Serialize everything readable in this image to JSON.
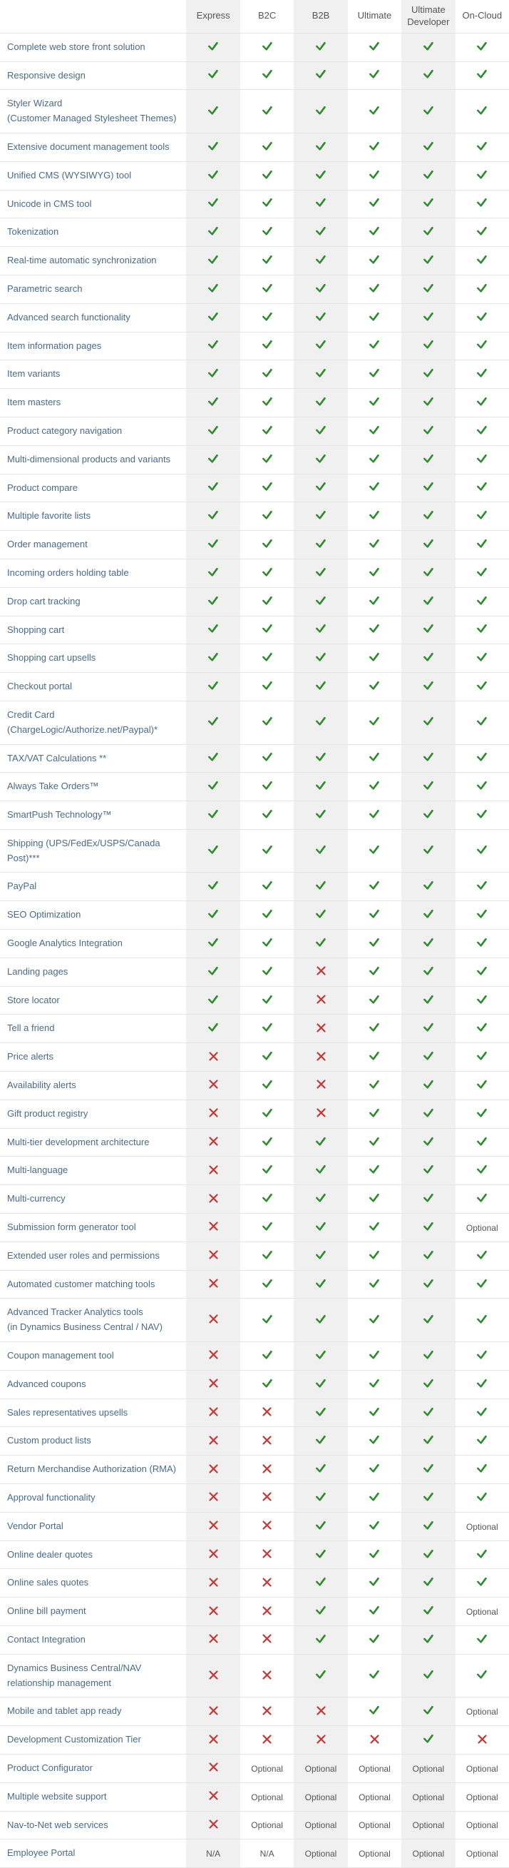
{
  "colors": {
    "check": "#2f8a2f",
    "cross": "#c23b3b",
    "shade": "#f0f0f0",
    "border": "#e5e5e5",
    "feature_text": "#4a6a8a",
    "text": "#555"
  },
  "columns": [
    "Express",
    "B2C",
    "B2B",
    "Ultimate",
    "Ultimate Developer",
    "On-Cloud"
  ],
  "shaded_cols": [
    0,
    2,
    4
  ],
  "rows": [
    {
      "label": "Complete web store front solution",
      "c": [
        "y",
        "y",
        "y",
        "y",
        "y",
        "y"
      ]
    },
    {
      "label": "Responsive design",
      "c": [
        "y",
        "y",
        "y",
        "y",
        "y",
        "y"
      ]
    },
    {
      "label": "Styler Wizard\n(Customer Managed Stylesheet Themes)",
      "c": [
        "y",
        "y",
        "y",
        "y",
        "y",
        "y"
      ]
    },
    {
      "label": "Extensive document management tools",
      "c": [
        "y",
        "y",
        "y",
        "y",
        "y",
        "y"
      ]
    },
    {
      "label": "Unified CMS (WYSIWYG) tool",
      "c": [
        "y",
        "y",
        "y",
        "y",
        "y",
        "y"
      ]
    },
    {
      "label": "Unicode in CMS tool",
      "c": [
        "y",
        "y",
        "y",
        "y",
        "y",
        "y"
      ]
    },
    {
      "label": "Tokenization",
      "c": [
        "y",
        "y",
        "y",
        "y",
        "y",
        "y"
      ]
    },
    {
      "label": "Real-time automatic synchronization",
      "c": [
        "y",
        "y",
        "y",
        "y",
        "y",
        "y"
      ]
    },
    {
      "label": "Parametric search",
      "c": [
        "y",
        "y",
        "y",
        "y",
        "y",
        "y"
      ]
    },
    {
      "label": "Advanced search functionality",
      "c": [
        "y",
        "y",
        "y",
        "y",
        "y",
        "y"
      ]
    },
    {
      "label": "Item information pages",
      "c": [
        "y",
        "y",
        "y",
        "y",
        "y",
        "y"
      ]
    },
    {
      "label": "Item variants",
      "c": [
        "y",
        "y",
        "y",
        "y",
        "y",
        "y"
      ]
    },
    {
      "label": "Item masters",
      "c": [
        "y",
        "y",
        "y",
        "y",
        "y",
        "y"
      ]
    },
    {
      "label": "Product category navigation",
      "c": [
        "y",
        "y",
        "y",
        "y",
        "y",
        "y"
      ]
    },
    {
      "label": "Multi-dimensional products and variants",
      "c": [
        "y",
        "y",
        "y",
        "y",
        "y",
        "y"
      ]
    },
    {
      "label": "Product compare",
      "c": [
        "y",
        "y",
        "y",
        "y",
        "y",
        "y"
      ]
    },
    {
      "label": "Multiple favorite lists",
      "c": [
        "y",
        "y",
        "y",
        "y",
        "y",
        "y"
      ]
    },
    {
      "label": "Order management",
      "c": [
        "y",
        "y",
        "y",
        "y",
        "y",
        "y"
      ]
    },
    {
      "label": "Incoming orders holding table",
      "c": [
        "y",
        "y",
        "y",
        "y",
        "y",
        "y"
      ]
    },
    {
      "label": "Drop cart tracking",
      "c": [
        "y",
        "y",
        "y",
        "y",
        "y",
        "y"
      ]
    },
    {
      "label": "Shopping cart",
      "c": [
        "y",
        "y",
        "y",
        "y",
        "y",
        "y"
      ]
    },
    {
      "label": "Shopping cart upsells",
      "c": [
        "y",
        "y",
        "y",
        "y",
        "y",
        "y"
      ]
    },
    {
      "label": "Checkout portal",
      "c": [
        "y",
        "y",
        "y",
        "y",
        "y",
        "y"
      ]
    },
    {
      "label": "Credit Card\n(ChargeLogic/Authorize.net/Paypal)*",
      "c": [
        "y",
        "y",
        "y",
        "y",
        "y",
        "y"
      ]
    },
    {
      "label": "TAX/VAT Calculations **",
      "c": [
        "y",
        "y",
        "y",
        "y",
        "y",
        "y"
      ]
    },
    {
      "label": "Always Take Orders™",
      "c": [
        "y",
        "y",
        "y",
        "y",
        "y",
        "y"
      ]
    },
    {
      "label": "SmartPush Technology™",
      "c": [
        "y",
        "y",
        "y",
        "y",
        "y",
        "y"
      ]
    },
    {
      "label": "Shipping (UPS/FedEx/USPS/Canada Post)***",
      "c": [
        "y",
        "y",
        "y",
        "y",
        "y",
        "y"
      ]
    },
    {
      "label": "PayPal",
      "c": [
        "y",
        "y",
        "y",
        "y",
        "y",
        "y"
      ]
    },
    {
      "label": "SEO Optimization",
      "c": [
        "y",
        "y",
        "y",
        "y",
        "y",
        "y"
      ]
    },
    {
      "label": "Google Analytics Integration",
      "c": [
        "y",
        "y",
        "y",
        "y",
        "y",
        "y"
      ]
    },
    {
      "label": "Landing pages",
      "c": [
        "y",
        "y",
        "n",
        "y",
        "y",
        "y"
      ]
    },
    {
      "label": "Store locator",
      "c": [
        "y",
        "y",
        "n",
        "y",
        "y",
        "y"
      ]
    },
    {
      "label": "Tell a friend",
      "c": [
        "y",
        "y",
        "n",
        "y",
        "y",
        "y"
      ]
    },
    {
      "label": "Price alerts",
      "c": [
        "n",
        "y",
        "n",
        "y",
        "y",
        "y"
      ]
    },
    {
      "label": "Availability alerts",
      "c": [
        "n",
        "y",
        "n",
        "y",
        "y",
        "y"
      ]
    },
    {
      "label": "Gift product registry",
      "c": [
        "n",
        "y",
        "n",
        "y",
        "y",
        "y"
      ]
    },
    {
      "label": "Multi-tier development architecture",
      "c": [
        "n",
        "y",
        "y",
        "y",
        "y",
        "y"
      ]
    },
    {
      "label": "Multi-language",
      "c": [
        "n",
        "y",
        "y",
        "y",
        "y",
        "y"
      ]
    },
    {
      "label": "Multi-currency",
      "c": [
        "n",
        "y",
        "y",
        "y",
        "y",
        "y"
      ]
    },
    {
      "label": "Submission form generator tool",
      "c": [
        "n",
        "y",
        "y",
        "y",
        "y",
        "Optional"
      ]
    },
    {
      "label": "Extended user roles and permissions",
      "c": [
        "n",
        "y",
        "y",
        "y",
        "y",
        "y"
      ]
    },
    {
      "label": "Automated customer matching tools",
      "c": [
        "n",
        "y",
        "y",
        "y",
        "y",
        "y"
      ]
    },
    {
      "label": "Advanced Tracker Analytics tools\n(in Dynamics Business Central / NAV)",
      "c": [
        "n",
        "y",
        "y",
        "y",
        "y",
        "y"
      ]
    },
    {
      "label": "Coupon management tool",
      "c": [
        "n",
        "y",
        "y",
        "y",
        "y",
        "y"
      ]
    },
    {
      "label": "Advanced coupons",
      "c": [
        "n",
        "y",
        "y",
        "y",
        "y",
        "y"
      ]
    },
    {
      "label": "Sales representatives upsells",
      "c": [
        "n",
        "n",
        "y",
        "y",
        "y",
        "y"
      ]
    },
    {
      "label": "Custom product lists",
      "c": [
        "n",
        "n",
        "y",
        "y",
        "y",
        "y"
      ]
    },
    {
      "label": "Return Merchandise Authorization (RMA)",
      "c": [
        "n",
        "n",
        "y",
        "y",
        "y",
        "y"
      ]
    },
    {
      "label": "Approval functionality",
      "c": [
        "n",
        "n",
        "y",
        "y",
        "y",
        "y"
      ]
    },
    {
      "label": "Vendor Portal",
      "c": [
        "n",
        "n",
        "y",
        "y",
        "y",
        "Optional"
      ]
    },
    {
      "label": "Online dealer quotes",
      "c": [
        "n",
        "n",
        "y",
        "y",
        "y",
        "y"
      ]
    },
    {
      "label": "Online sales quotes",
      "c": [
        "n",
        "n",
        "y",
        "y",
        "y",
        "y"
      ]
    },
    {
      "label": "Online bill payment",
      "c": [
        "n",
        "n",
        "y",
        "y",
        "y",
        "Optional"
      ]
    },
    {
      "label": "Contact Integration",
      "c": [
        "n",
        "n",
        "y",
        "y",
        "y",
        "y"
      ]
    },
    {
      "label": "Dynamics Business Central/NAV relationship management",
      "c": [
        "n",
        "n",
        "y",
        "y",
        "y",
        "y"
      ]
    },
    {
      "label": "Mobile and tablet app ready",
      "c": [
        "n",
        "n",
        "n",
        "y",
        "y",
        "Optional"
      ]
    },
    {
      "label": "Development Customization Tier",
      "c": [
        "n",
        "n",
        "n",
        "n",
        "y",
        "n"
      ]
    },
    {
      "label": "Product Configurator",
      "c": [
        "n",
        "Optional",
        "Optional",
        "Optional",
        "Optional",
        "Optional"
      ]
    },
    {
      "label": "Multiple website support",
      "c": [
        "n",
        "Optional",
        "Optional",
        "Optional",
        "Optional",
        "Optional"
      ]
    },
    {
      "label": "Nav-to-Net web services",
      "c": [
        "n",
        "Optional",
        "Optional",
        "Optional",
        "Optional",
        "Optional"
      ]
    },
    {
      "label": "Employee Portal",
      "c": [
        "N/A",
        "N/A",
        "Optional",
        "Optional",
        "Optional",
        "Optional"
      ]
    }
  ]
}
